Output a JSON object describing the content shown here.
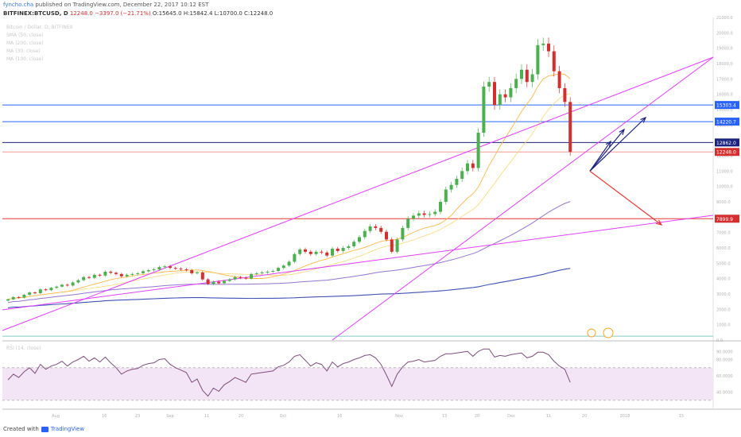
{
  "header": {
    "line1_user": "fyncho.cha",
    "line1_rest": "published on TradingView.com, December 22, 2017 10:12 EST",
    "line2_symbol": "BITFINEX:BTCUSD, D",
    "line2_price": "12248.0",
    "line2_change": "−3397.0 (−21.71%)",
    "line2_ohlc": "O:15645.0 H:15842.4 L:10700.0 C:12248.0"
  },
  "indicators": [
    "Bitcoin / Dollar, D, BITFINEX",
    "SMA (50, close)",
    "MA (200, close)",
    "MA (30, close)",
    "MA (100, close)"
  ],
  "footer": {
    "created_with": "Created with",
    "brand": "TradingView"
  },
  "colors": {
    "up": "#26a69a",
    "up_candle": "#4caf50",
    "down": "#d32f2f",
    "ma50": "#ffb74d",
    "ma30": "#f9d97a",
    "ma200": "#9575cd",
    "ma100": "#3f51b5",
    "trend": "#e040fb",
    "rsi": "#7b4f7b",
    "rsi_band": "#f3e5f5",
    "resistance": "#2962ff",
    "support": "#e53935"
  },
  "chart_data": {
    "type": "candlestick",
    "symbol": "BITFINEX:BTCUSD",
    "interval": "D",
    "x_ticks": [
      "Aug",
      "16",
      "23",
      "Sep",
      "11",
      "20",
      "Oct",
      "16",
      "Nov",
      "13",
      "20",
      "Dec",
      "11",
      "20",
      "2018",
      "15"
    ],
    "y_range": [
      0,
      21000
    ],
    "y_ticks": [
      0,
      1000,
      2000,
      3000,
      4000,
      5000,
      6000,
      7000,
      8000,
      9000,
      10000,
      11000,
      12000,
      13000,
      14000,
      15000,
      16000,
      17000,
      18000,
      19000,
      20000,
      21000
    ],
    "y_tick_labels": [
      "0.0",
      "1000.0",
      "2000.0",
      "3000.0",
      "4000.0",
      "5000.0",
      "6000.0",
      "7000.0",
      "8000.0",
      "9000.0",
      "10000.0",
      "11000.0",
      "12000.0",
      "13000.0",
      "14000.0",
      "15000.0",
      "16000.0",
      "17000.0",
      "18000.0",
      "19000.0",
      "20000.0",
      "21000.0"
    ],
    "price_labels": [
      {
        "value": 15303.4,
        "label": "15303.4",
        "color": "#2962ff"
      },
      {
        "value": 14220.7,
        "label": "14220.7",
        "color": "#2962ff"
      },
      {
        "value": 12862.0,
        "label": "12862.0",
        "color": "#1a237e"
      },
      {
        "value": 12248.0,
        "label": "12248.0",
        "color": "#d32f2f"
      },
      {
        "value": 7899.9,
        "label": "7899.9",
        "color": "#d32f2f"
      }
    ],
    "horizontal_levels": [
      {
        "value": 15303.4,
        "color": "#2962ff"
      },
      {
        "value": 14220.7,
        "color": "#2962ff"
      },
      {
        "value": 12862.0,
        "color": "#1a237e"
      },
      {
        "value": 12248.0,
        "color": "#ef9a9a"
      },
      {
        "value": 7899.9,
        "color": "#e53935"
      },
      {
        "value": 250,
        "color": "#80cbc4"
      }
    ],
    "closes": [
      2650,
      2800,
      2760,
      2950,
      3100,
      3050,
      3300,
      3250,
      3400,
      3480,
      3600,
      3550,
      3750,
      3900,
      4100,
      4050,
      4250,
      4200,
      4450,
      4380,
      4300,
      4150,
      4250,
      4300,
      4350,
      4480,
      4550,
      4600,
      4750,
      4800,
      4700,
      4650,
      4600,
      4550,
      4350,
      4400,
      3950,
      3650,
      3800,
      3700,
      3850,
      3950,
      4100,
      4050,
      4000,
      4300,
      4350,
      4400,
      4450,
      4500,
      4700,
      4850,
      5100,
      5600,
      5900,
      5750,
      5600,
      5750,
      5700,
      5500,
      5950,
      5800,
      6000,
      6100,
      6400,
      6700,
      7100,
      7400,
      7300,
      7050,
      6550,
      5750,
      6550,
      7300,
      7900,
      8100,
      8250,
      8150,
      8200,
      8350,
      9000,
      9800,
      10100,
      10500,
      11000,
      11500,
      11200,
      13500,
      16500,
      16800,
      15300,
      16000,
      15800,
      16400,
      17000,
      17600,
      16800,
      17300,
      19200,
      19300,
      18800,
      17500,
      16400,
      15500,
      12248
    ],
    "rsi": {
      "name": "RSI (14, close)",
      "upper": 70,
      "lower": 30,
      "y_tick_labels": [
        "90.0000",
        "80.0000",
        "60.0000",
        "40.0000"
      ],
      "values": [
        55,
        62,
        58,
        65,
        70,
        63,
        74,
        68,
        72,
        74,
        78,
        72,
        77,
        80,
        84,
        78,
        82,
        77,
        83,
        76,
        70,
        62,
        66,
        68,
        69,
        73,
        75,
        76,
        80,
        81,
        74,
        70,
        67,
        64,
        52,
        56,
        42,
        35,
        45,
        41,
        49,
        53,
        58,
        55,
        52,
        62,
        63,
        64,
        65,
        66,
        71,
        73,
        77,
        84,
        86,
        79,
        72,
        76,
        74,
        66,
        77,
        71,
        75,
        77,
        80,
        82,
        85,
        86,
        82,
        74,
        61,
        47,
        62,
        71,
        77,
        78,
        80,
        77,
        78,
        79,
        84,
        87,
        87,
        88,
        89,
        90,
        84,
        90,
        93,
        93,
        83,
        85,
        84,
        86,
        87,
        88,
        82,
        84,
        89,
        89,
        86,
        78,
        72,
        68,
        52
      ]
    },
    "moving_averages": [
      {
        "name": "MA (30, close)",
        "color": "#f9d97a"
      },
      {
        "name": "SMA (50, close)",
        "color": "#ffb74d"
      },
      {
        "name": "MA (100, close)",
        "color": "#3f51b5"
      },
      {
        "name": "MA (200, close)",
        "color": "#9575cd"
      }
    ]
  }
}
